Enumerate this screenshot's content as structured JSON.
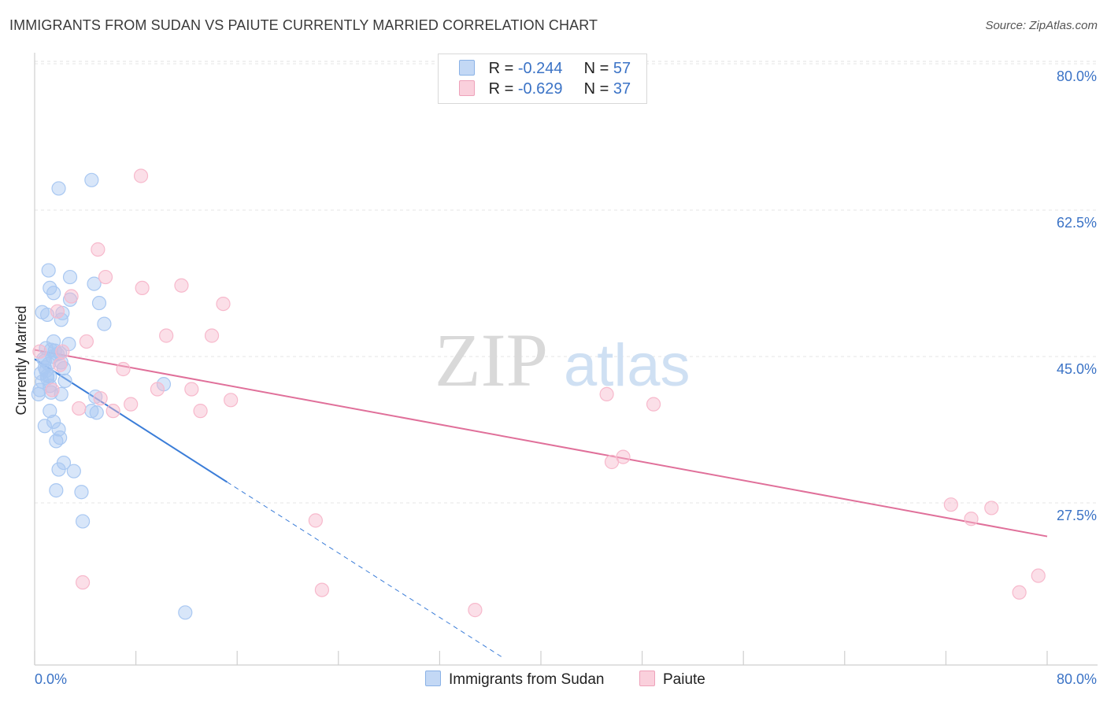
{
  "header": {
    "title": "IMMIGRANTS FROM SUDAN VS PAIUTE CURRENTLY MARRIED CORRELATION CHART",
    "source": "Source: ZipAtlas.com"
  },
  "watermark": {
    "zip": "ZIP",
    "atlas": "atlas"
  },
  "legend": {
    "rows": [
      {
        "r_label": "R =",
        "r_value": "-0.244",
        "n_label": "N =",
        "n_value": "57",
        "color": "#a9c8f2"
      },
      {
        "r_label": "R =",
        "r_value": "-0.629",
        "n_label": "N =",
        "n_value": "37",
        "color": "#f7b9cc"
      }
    ]
  },
  "bottom_legend": [
    {
      "label": "Immigrants from Sudan",
      "color": "#a9c8f2"
    },
    {
      "label": "Paiute",
      "color": "#f7b9cc"
    }
  ],
  "chart_data": {
    "type": "scatter",
    "title": "IMMIGRANTS FROM SUDAN VS PAIUTE CURRENTLY MARRIED CORRELATION CHART",
    "xlabel": "",
    "ylabel": "Currently Married",
    "xlim": [
      0,
      80
    ],
    "ylim": [
      11,
      82
    ],
    "x_tick_labels": [
      "0.0%",
      "80.0%"
    ],
    "y_ticks": [
      27.5,
      45.0,
      62.5,
      80.0
    ],
    "y_tick_labels": [
      "27.5%",
      "45.0%",
      "62.5%",
      "80.0%"
    ],
    "grid": true,
    "series": [
      {
        "name": "Immigrants from Sudan",
        "color": "#3b7dd8",
        "fill": "#a9c8f2",
        "points": [
          [
            0.3,
            42.0
          ],
          [
            0.5,
            44.5
          ],
          [
            0.6,
            43.5
          ],
          [
            0.7,
            46.2
          ],
          [
            0.8,
            45.2
          ],
          [
            0.9,
            44.8
          ],
          [
            1.0,
            43.9
          ],
          [
            1.1,
            45.6
          ],
          [
            1.2,
            44.1
          ],
          [
            1.3,
            47.3
          ],
          [
            1.4,
            46.5
          ],
          [
            1.5,
            48.3
          ],
          [
            1.6,
            47.2
          ],
          [
            1.8,
            46.8
          ],
          [
            2.0,
            46.9
          ],
          [
            2.1,
            45.8
          ],
          [
            2.3,
            45.1
          ],
          [
            0.6,
            51.8
          ],
          [
            1.0,
            51.5
          ],
          [
            1.1,
            56.8
          ],
          [
            1.2,
            54.7
          ],
          [
            1.5,
            54.1
          ],
          [
            2.1,
            50.9
          ],
          [
            2.2,
            51.7
          ],
          [
            2.8,
            53.3
          ],
          [
            2.8,
            56.0
          ],
          [
            4.7,
            55.2
          ],
          [
            5.1,
            52.9
          ],
          [
            5.5,
            50.4
          ],
          [
            0.8,
            38.2
          ],
          [
            1.2,
            40.0
          ],
          [
            1.3,
            42.2
          ],
          [
            1.5,
            38.7
          ],
          [
            1.7,
            36.4
          ],
          [
            1.9,
            37.8
          ],
          [
            2.0,
            36.8
          ],
          [
            2.1,
            42.0
          ],
          [
            2.4,
            43.6
          ],
          [
            1.9,
            33.0
          ],
          [
            2.3,
            33.8
          ],
          [
            1.7,
            30.5
          ],
          [
            3.1,
            32.8
          ],
          [
            3.7,
            30.3
          ],
          [
            3.8,
            26.8
          ],
          [
            1.9,
            66.6
          ],
          [
            4.5,
            67.6
          ],
          [
            4.5,
            40.0
          ],
          [
            4.8,
            41.7
          ],
          [
            4.9,
            39.8
          ],
          [
            10.2,
            43.2
          ],
          [
            11.9,
            15.9
          ],
          [
            0.8,
            46.0
          ],
          [
            1.2,
            43.0
          ],
          [
            2.7,
            48.0
          ],
          [
            1.0,
            44.2
          ],
          [
            0.4,
            42.5
          ],
          [
            0.9,
            47.5
          ]
        ],
        "trend": {
          "x0": 0.0,
          "y0": 46.2,
          "x1": 15.2,
          "y1": 31.5,
          "dash_to_x": 37.0,
          "dash_to_y": 10.5
        }
      },
      {
        "name": "Paiute",
        "color": "#e0709a",
        "fill": "#f7b9cc",
        "points": [
          [
            0.4,
            47.1
          ],
          [
            1.4,
            42.5
          ],
          [
            1.8,
            51.9
          ],
          [
            2.2,
            47.1
          ],
          [
            2.9,
            53.7
          ],
          [
            4.1,
            48.3
          ],
          [
            5.0,
            59.3
          ],
          [
            5.6,
            56.0
          ],
          [
            6.2,
            40.0
          ],
          [
            7.0,
            45.0
          ],
          [
            7.6,
            40.8
          ],
          [
            8.5,
            54.7
          ],
          [
            8.4,
            68.1
          ],
          [
            9.7,
            42.6
          ],
          [
            10.4,
            49.0
          ],
          [
            11.6,
            55.0
          ],
          [
            12.4,
            42.6
          ],
          [
            13.1,
            40.0
          ],
          [
            14.0,
            49.0
          ],
          [
            14.9,
            52.8
          ],
          [
            15.5,
            41.3
          ],
          [
            22.2,
            26.9
          ],
          [
            22.7,
            18.6
          ],
          [
            34.8,
            16.2
          ],
          [
            45.2,
            42.0
          ],
          [
            45.6,
            33.9
          ],
          [
            46.5,
            34.5
          ],
          [
            48.9,
            40.8
          ],
          [
            72.4,
            28.8
          ],
          [
            74.0,
            27.1
          ],
          [
            75.6,
            28.4
          ],
          [
            77.8,
            18.3
          ],
          [
            79.3,
            20.3
          ],
          [
            3.5,
            40.3
          ],
          [
            5.2,
            41.5
          ],
          [
            2.0,
            45.5
          ],
          [
            3.8,
            19.5
          ]
        ],
        "trend": {
          "x0": 0.0,
          "y0": 47.3,
          "x1": 80.0,
          "y1": 25.0
        }
      }
    ]
  }
}
